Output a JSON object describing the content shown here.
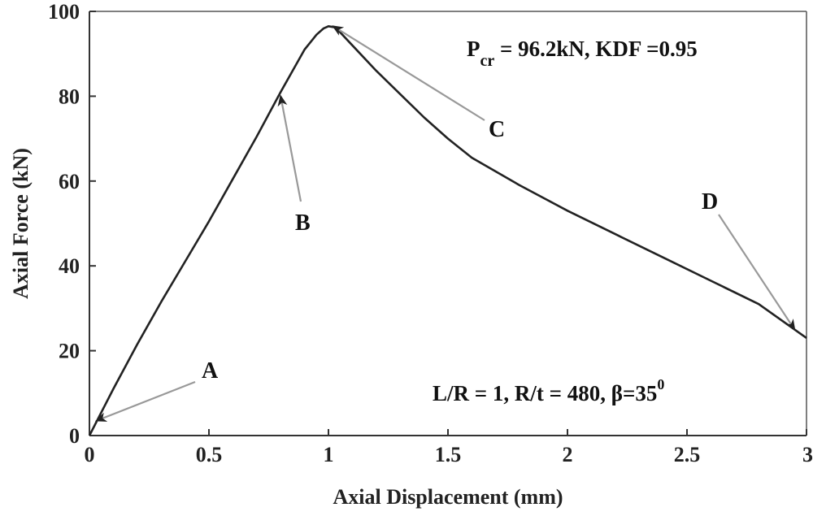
{
  "chart_data": {
    "type": "line",
    "xlabel": "Axial Displacement (mm)",
    "ylabel": "Axial Force (kN)",
    "xlim": [
      0,
      3
    ],
    "ylim": [
      0,
      100
    ],
    "x_ticks": [
      0,
      0.5,
      1,
      1.5,
      2,
      2.5,
      3
    ],
    "x_tick_labels": [
      "0",
      "0.5",
      "1",
      "1.5",
      "2",
      "2.5",
      "3"
    ],
    "y_ticks": [
      0,
      20,
      40,
      60,
      80,
      100
    ],
    "y_tick_labels": [
      "0",
      "20",
      "40",
      "60",
      "80",
      "100"
    ],
    "grid": false,
    "line_color": "#222222",
    "series": [
      {
        "x": [
          0,
          0.1,
          0.2,
          0.3,
          0.4,
          0.5,
          0.6,
          0.7,
          0.8,
          0.85,
          0.9,
          0.95,
          0.98,
          1.0,
          1.03,
          1.1,
          1.2,
          1.3,
          1.4,
          1.5,
          1.6,
          1.8,
          2.0,
          2.2,
          2.4,
          2.6,
          2.8,
          3.0
        ],
        "y": [
          0,
          11,
          21.5,
          31.5,
          41,
          50.5,
          60.5,
          70.5,
          81,
          86,
          91,
          94.5,
          96,
          96.5,
          96.2,
          92,
          86,
          80.5,
          75,
          70,
          65.5,
          59,
          53,
          47.5,
          42,
          36.5,
          31,
          23
        ]
      }
    ],
    "annotations": {
      "pcr": {
        "main": "P",
        "sub": "cr",
        "rest": " = 96.2kN, KDF =0.95"
      },
      "params": {
        "main": "L/R = 1, R/t = 480,  β=35",
        "sup": "0"
      }
    },
    "points": [
      {
        "label": "A",
        "x": 0.03,
        "y": 3.5
      },
      {
        "label": "B",
        "x": 0.8,
        "y": 80
      },
      {
        "label": "C",
        "x": 1.02,
        "y": 96.5
      },
      {
        "label": "D",
        "x": 2.95,
        "y": 25
      }
    ]
  }
}
